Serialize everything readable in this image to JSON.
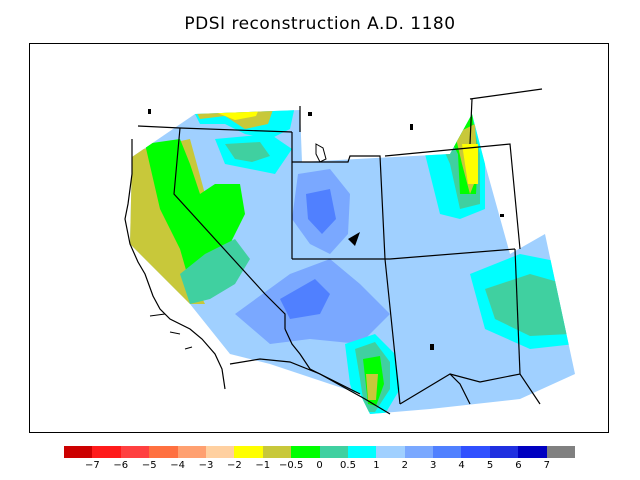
{
  "title": "PDSI reconstruction A.D. 1180",
  "legend": {
    "colors": [
      "#cc0000",
      "#ff1a1a",
      "#ff4040",
      "#ff7040",
      "#ffa070",
      "#ffd0a0",
      "#ffff00",
      "#c8c83a",
      "#00ff00",
      "#40d0a0",
      "#00ffff",
      "#a0d0ff",
      "#7aa8ff",
      "#5080ff",
      "#3050ff",
      "#2030e0",
      "#0000c0",
      "#808080"
    ],
    "ticks": [
      "−7",
      "−6",
      "−5",
      "−4",
      "−3",
      "−2",
      "−1",
      "−0.5",
      "0",
      "0.5",
      "1",
      "2",
      "3",
      "4",
      "5",
      "6",
      "7"
    ]
  }
}
